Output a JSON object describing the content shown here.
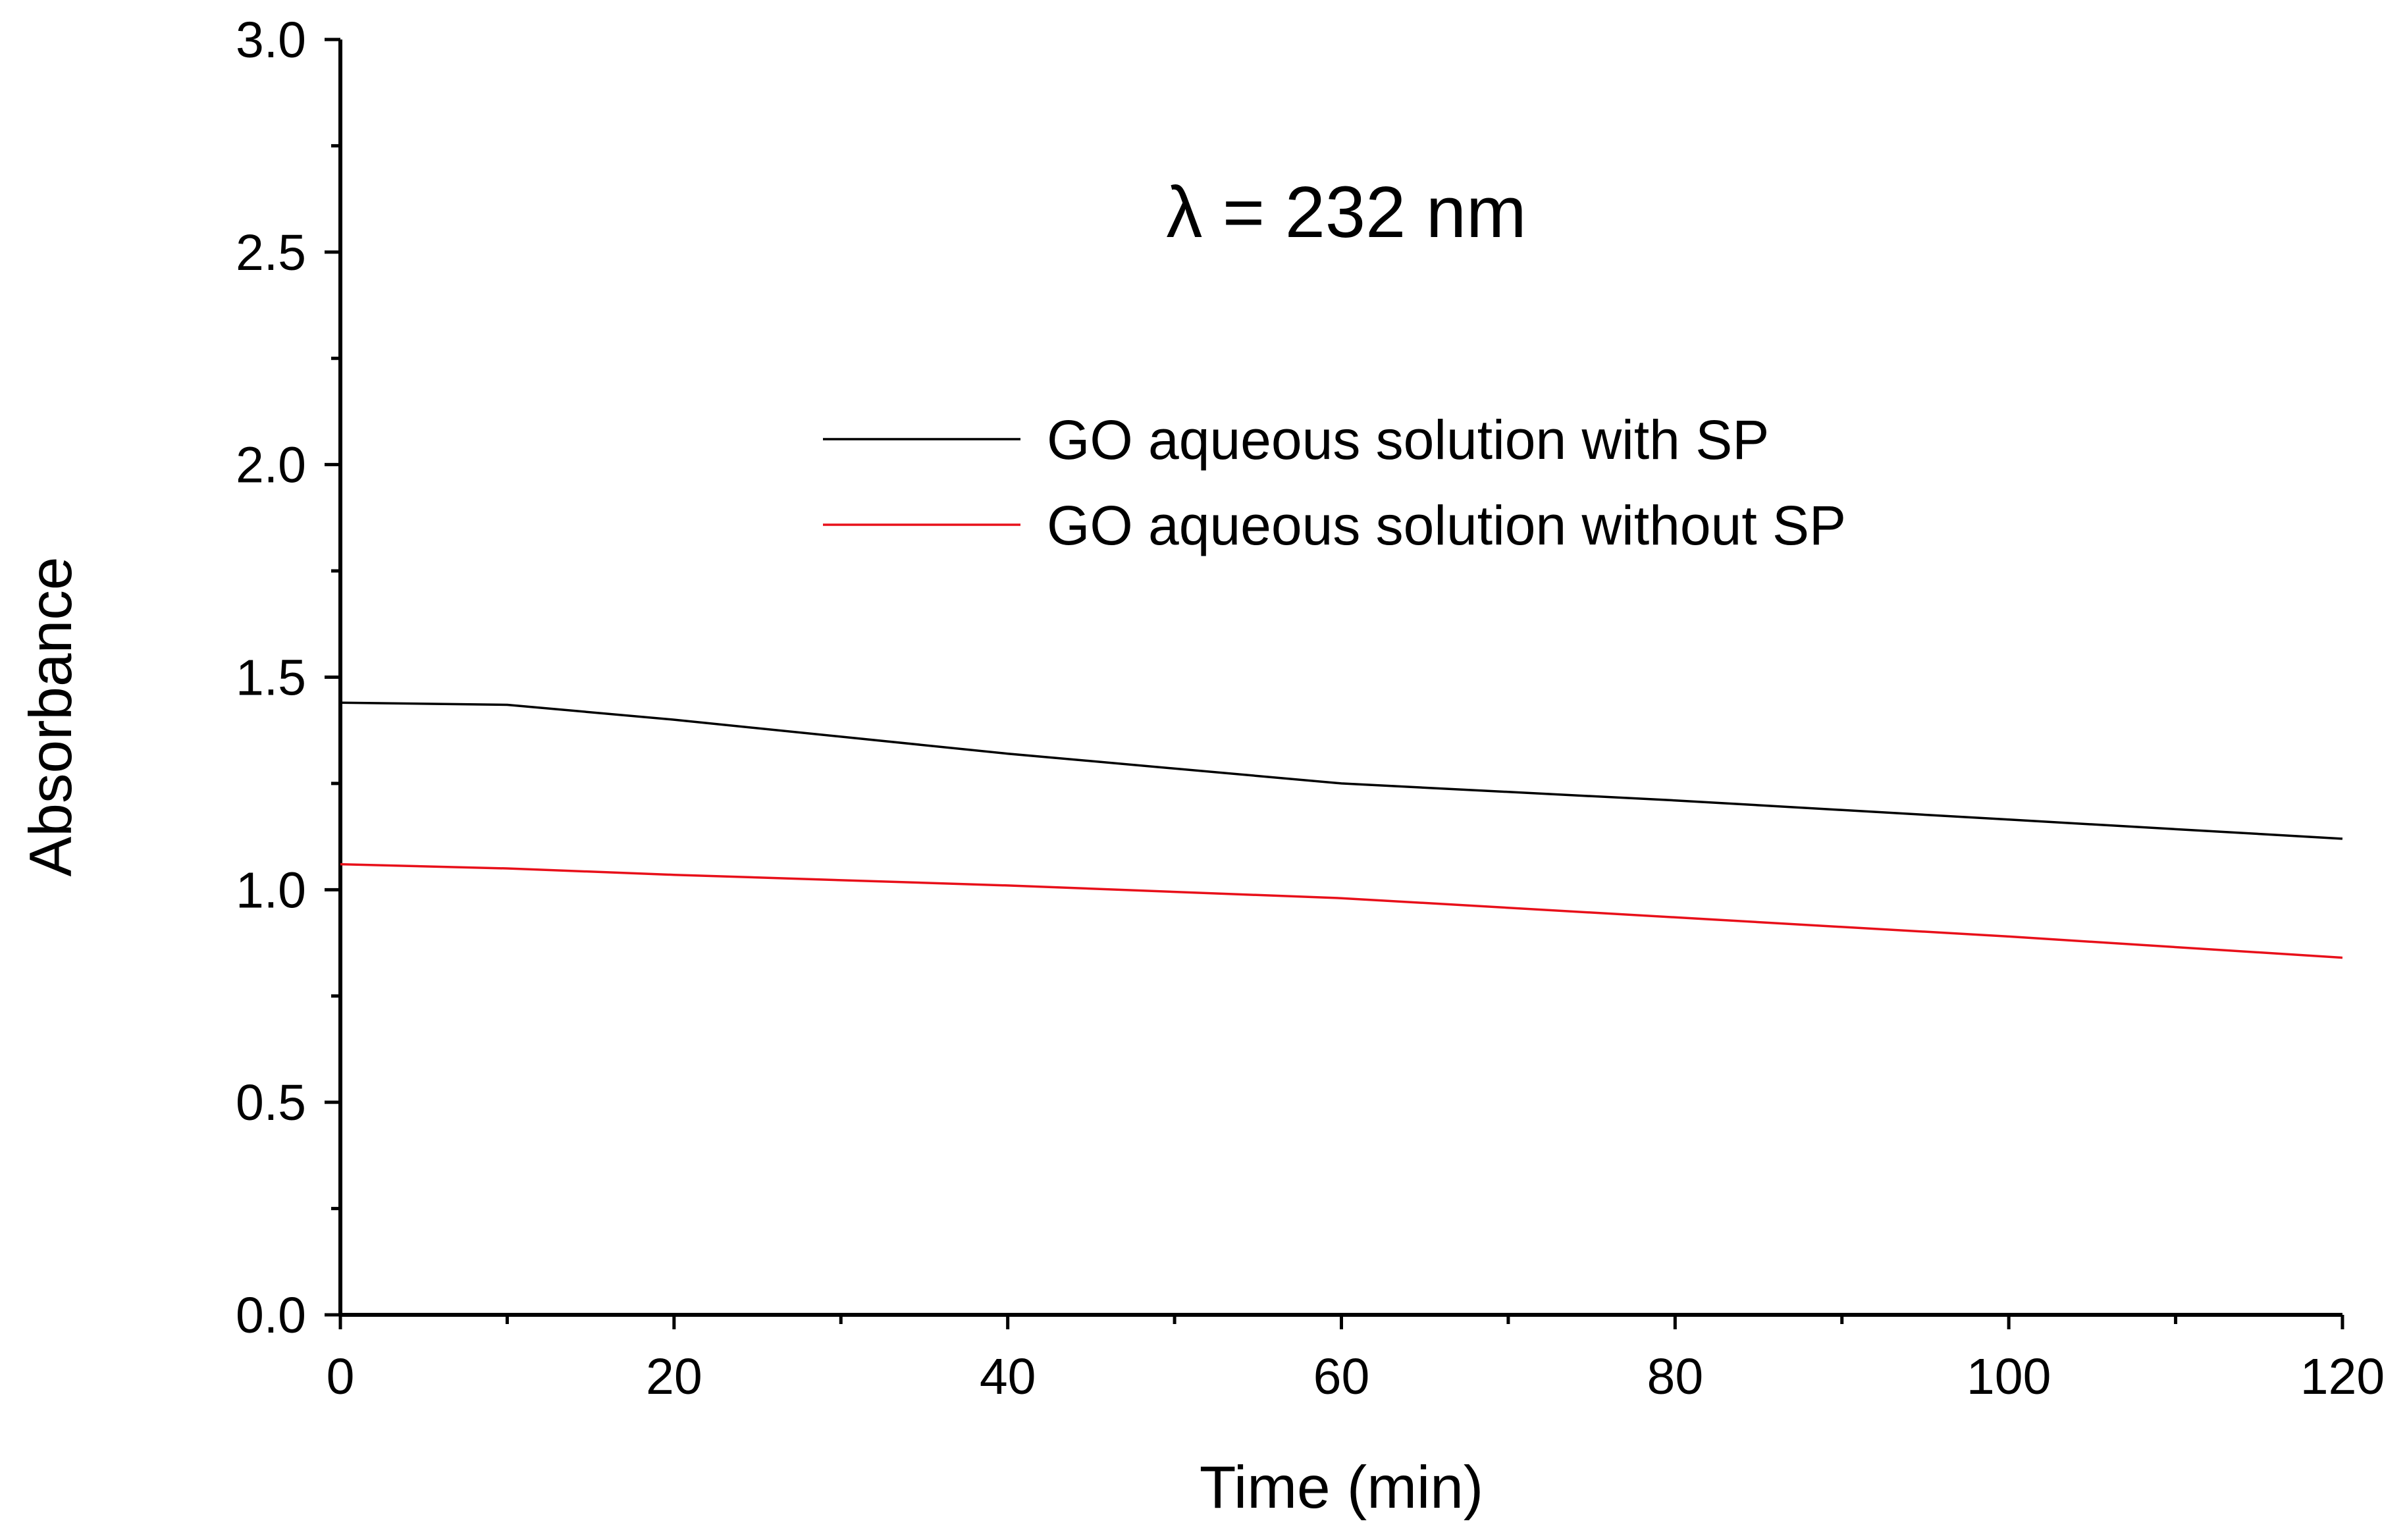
{
  "chart_data": {
    "type": "line",
    "xlabel": "Time (min)",
    "ylabel": "Absorbance",
    "annotation": "λ = 232 nm",
    "xlim": [
      0,
      120
    ],
    "ylim": [
      0.0,
      3.0
    ],
    "x_ticks": [
      "0",
      "20",
      "40",
      "60",
      "80",
      "100",
      "120"
    ],
    "y_ticks": [
      "0.0",
      "0.5",
      "1.0",
      "1.5",
      "2.0",
      "2.5",
      "3.0"
    ],
    "grid": false,
    "legend_position": "upper-right",
    "series": [
      {
        "name": "GO aqueous solution with SP",
        "color": "#000000",
        "x": [
          0,
          10,
          20,
          40,
          60,
          80,
          100,
          120
        ],
        "y": [
          1.44,
          1.435,
          1.4,
          1.32,
          1.25,
          1.21,
          1.165,
          1.12
        ]
      },
      {
        "name": "GO aqueous solution without SP",
        "color": "#e8101a",
        "x": [
          0,
          10,
          20,
          40,
          60,
          80,
          100,
          120
        ],
        "y": [
          1.06,
          1.05,
          1.035,
          1.01,
          0.98,
          0.935,
          0.89,
          0.84
        ]
      }
    ]
  }
}
